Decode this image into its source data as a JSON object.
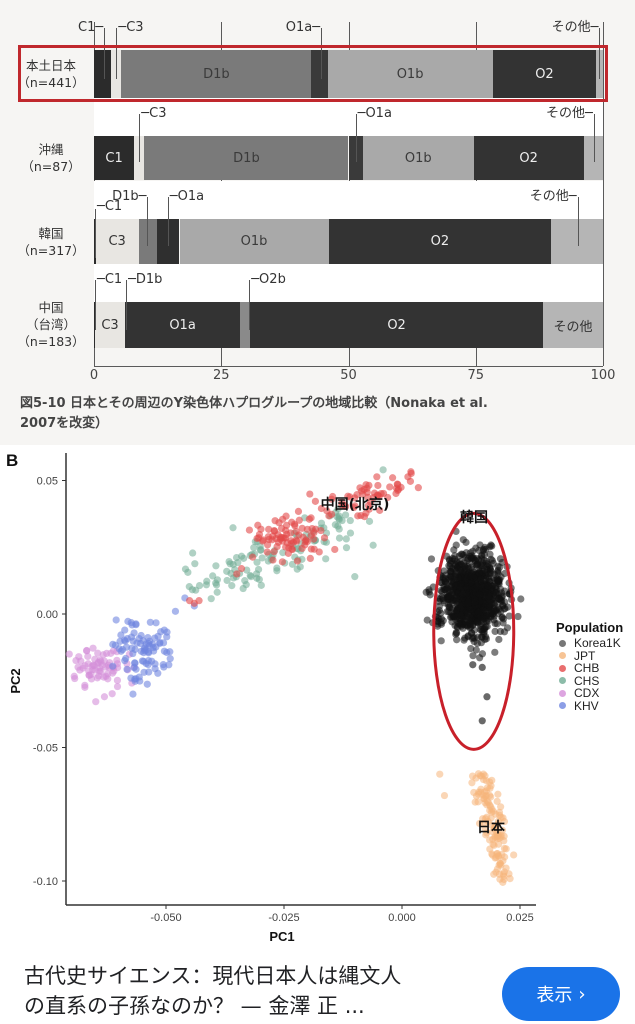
{
  "figure_a": {
    "caption_line1": "図5-10  日本とその周辺のY染色体ハプログループの地域比較（Nonaka et al.",
    "caption_line2": "2007を改変）",
    "axis_ticks": [
      "0",
      "25",
      "50",
      "75",
      "100"
    ],
    "rows": [
      {
        "label_line1": "本土日本",
        "label_line2": "（n=441）",
        "label_line3": "",
        "highlighted": true,
        "segments": [
          {
            "name": "C1",
            "value": 3.4,
            "color": "#2b2b2b",
            "text": "",
            "text_color": "#fff"
          },
          {
            "name": "C3",
            "value": 2.0,
            "color": "#e8e6e2",
            "text": "",
            "text_color": "#333"
          },
          {
            "name": "D1b",
            "value": 37.3,
            "color": "#7a7a7a",
            "text": "D1b",
            "text_color": "#3a3a3a"
          },
          {
            "name": "O1a",
            "value": 3.2,
            "color": "#3a3a3a",
            "text": "",
            "text_color": "#fff"
          },
          {
            "name": "O1b",
            "value": 32.4,
            "color": "#a9a9a9",
            "text": "O1b",
            "text_color": "#3a3a3a"
          },
          {
            "name": "O2",
            "value": 20.4,
            "color": "#333333",
            "text": "O2",
            "text_color": "#eee"
          },
          {
            "name": "その他",
            "value": 1.3,
            "color": "#b5b5b5",
            "text": "",
            "text_color": "#333"
          }
        ],
        "callouts": [
          {
            "text": "C1",
            "x": 2.0,
            "side": "left"
          },
          {
            "text": "C3",
            "x": 4.4,
            "side": "right"
          },
          {
            "text": "O1a",
            "x": 44.6,
            "side": "left"
          },
          {
            "text": "その他",
            "x": 99.3,
            "side": "left"
          }
        ]
      },
      {
        "label_line1": "沖縄",
        "label_line2": "（n=87）",
        "label_line3": "",
        "highlighted": false,
        "segments": [
          {
            "name": "C1",
            "value": 7.9,
            "color": "#2b2b2b",
            "text": "C1",
            "text_color": "#eee"
          },
          {
            "name": "C3",
            "value": 2.0,
            "color": "#e8e6e2",
            "text": "",
            "text_color": "#333"
          },
          {
            "name": "D1b",
            "value": 40.1,
            "color": "#7a7a7a",
            "text": "D1b",
            "text_color": "#3a3a3a"
          },
          {
            "name": "O1a",
            "value": 2.8,
            "color": "#3a3a3a",
            "text": "",
            "text_color": "#fff"
          },
          {
            "name": "O1b",
            "value": 21.8,
            "color": "#a9a9a9",
            "text": "O1b",
            "text_color": "#3a3a3a"
          },
          {
            "name": "O2",
            "value": 21.6,
            "color": "#333333",
            "text": "O2",
            "text_color": "#eee"
          },
          {
            "name": "その他",
            "value": 3.8,
            "color": "#b5b5b5",
            "text": "",
            "text_color": "#333"
          }
        ],
        "callouts": [
          {
            "text": "C3",
            "x": 8.9,
            "side": "right"
          },
          {
            "text": "O1a",
            "x": 51.4,
            "side": "right"
          },
          {
            "text": "その他",
            "x": 98.2,
            "side": "left"
          }
        ]
      },
      {
        "label_line1": "韓国",
        "label_line2": "（n=317）",
        "label_line3": "",
        "highlighted": false,
        "segments": [
          {
            "name": "C1",
            "value": 0.3,
            "color": "#2b2b2b",
            "text": "",
            "text_color": "#fff"
          },
          {
            "name": "C3",
            "value": 8.5,
            "color": "#e8e6e2",
            "text": "C3",
            "text_color": "#333"
          },
          {
            "name": "D1b",
            "value": 3.5,
            "color": "#7a7a7a",
            "text": "",
            "text_color": "#333"
          },
          {
            "name": "O1a",
            "value": 4.5,
            "color": "#2f2f2f",
            "text": "",
            "text_color": "#fff"
          },
          {
            "name": "O1b",
            "value": 29.3,
            "color": "#a9a9a9",
            "text": "O1b",
            "text_color": "#3a3a3a"
          },
          {
            "name": "O2",
            "value": 43.7,
            "color": "#333333",
            "text": "O2",
            "text_color": "#eee"
          },
          {
            "name": "その他",
            "value": 10.2,
            "color": "#b5b5b5",
            "text": "",
            "text_color": "#333"
          }
        ],
        "callouts": [
          {
            "text": "D1b",
            "x": 10.5,
            "side": "left"
          },
          {
            "text": "C1",
            "x": 0.2,
            "side": "right"
          },
          {
            "text": "O1a",
            "x": 14.5,
            "side": "right"
          },
          {
            "text": "その他",
            "x": 95.0,
            "side": "left"
          }
        ]
      },
      {
        "label_line1": "中国",
        "label_line2": "（台湾）",
        "label_line3": "（n=183）",
        "highlighted": false,
        "segments": [
          {
            "name": "C1",
            "value": 0.2,
            "color": "#2b2b2b",
            "text": "",
            "text_color": "#fff"
          },
          {
            "name": "C3",
            "value": 5.9,
            "color": "#e8e6e2",
            "text": "C3",
            "text_color": "#333"
          },
          {
            "name": "O1a",
            "value": 22.6,
            "color": "#333333",
            "text": "O1a",
            "text_color": "#eee"
          },
          {
            "name": "O2b",
            "value": 2.0,
            "color": "#8a8a8a",
            "text": "",
            "text_color": "#333"
          },
          {
            "name": "O2",
            "value": 57.5,
            "color": "#333333",
            "text": "O2",
            "text_color": "#eee"
          },
          {
            "name": "その他",
            "value": 11.8,
            "color": "#b5b5b5",
            "text": "その他",
            "text_color": "#333"
          }
        ],
        "callouts": [
          {
            "text": "C1",
            "x": 0.2,
            "side": "right"
          },
          {
            "text": "D1b",
            "x": 6.3,
            "side": "right"
          },
          {
            "text": "O2b",
            "x": 30.5,
            "side": "right"
          }
        ]
      }
    ]
  },
  "figure_b": {
    "panel_letter": "B",
    "xlabel": "PC1",
    "ylabel": "PC2",
    "x_ticks": [
      "-0.050",
      "-0.025",
      "0.000",
      "0.025"
    ],
    "y_ticks": [
      "0.05",
      "0.00",
      "-0.05",
      "-0.10"
    ],
    "annotations": {
      "china": "中国(北京)",
      "korea": "韓国",
      "japan": "日本"
    },
    "legend": {
      "title": "Population",
      "items": [
        {
          "label": "Korea1K",
          "color": "#555555"
        },
        {
          "label": "JPT",
          "color": "#f5b57a"
        },
        {
          "label": "CHB",
          "color": "#e34a4a"
        },
        {
          "label": "CHS",
          "color": "#6fab94"
        },
        {
          "label": "CDX",
          "color": "#d48fd8"
        },
        {
          "label": "KHV",
          "color": "#6f86e0"
        }
      ]
    },
    "highlight_color": "#c8202a"
  },
  "footer": {
    "title_line1": "古代史サイエンス：現代日本人は縄文人",
    "title_line2": "の直系の子孫なのか？ — 金澤 正 ...",
    "button_label": "表示",
    "button_chevron": "›",
    "button_color": "#1a73e8"
  },
  "chart_data": [
    {
      "type": "bar",
      "orientation": "horizontal-stacked",
      "title": "図5-10 日本とその周辺のY染色体ハプログループの地域比較（Nonaka et al. 2007を改変）",
      "xlabel": "",
      "ylabel": "",
      "xlim": [
        0,
        100
      ],
      "x_ticks": [
        0,
        25,
        50,
        75,
        100
      ],
      "grid": true,
      "categories": [
        "本土日本 (n=441)",
        "沖縄 (n=87)",
        "韓国 (n=317)",
        "中国(台湾) (n=183)"
      ],
      "series": [
        {
          "name": "C1",
          "values": [
            3.4,
            7.9,
            0.3,
            0.2
          ]
        },
        {
          "name": "C3",
          "values": [
            2.0,
            2.0,
            8.5,
            5.9
          ]
        },
        {
          "name": "D1b",
          "values": [
            37.3,
            40.1,
            3.5,
            0.0
          ]
        },
        {
          "name": "O1a",
          "values": [
            3.2,
            2.8,
            4.5,
            22.6
          ]
        },
        {
          "name": "O1b",
          "values": [
            32.4,
            21.8,
            29.3,
            0.0
          ]
        },
        {
          "name": "O2b",
          "values": [
            0.0,
            0.0,
            0.0,
            2.0
          ]
        },
        {
          "name": "O2",
          "values": [
            20.4,
            21.6,
            43.7,
            57.5
          ]
        },
        {
          "name": "その他",
          "values": [
            1.3,
            3.8,
            10.2,
            11.8
          ]
        }
      ],
      "annotations": [
        "本土日本 row highlighted with red box"
      ]
    },
    {
      "type": "scatter",
      "title": "B",
      "xlabel": "PC1",
      "ylabel": "PC2",
      "xlim": [
        -0.071,
        0.027
      ],
      "ylim": [
        -0.105,
        0.058
      ],
      "x_ticks": [
        -0.05,
        -0.025,
        0.0,
        0.025
      ],
      "y_ticks": [
        0.05,
        0.0,
        -0.05,
        -0.1
      ],
      "legend_position": "right",
      "series": [
        {
          "name": "Korea1K",
          "color": "#555555",
          "center": [
            0.015,
            0.007
          ],
          "spread": [
            0.0035,
            0.008
          ],
          "outliers": [
            [
              0.015,
              -0.019
            ],
            [
              0.017,
              -0.02
            ],
            [
              0.018,
              -0.031
            ],
            [
              0.017,
              -0.04
            ]
          ]
        },
        {
          "name": "JPT",
          "color": "#f5b57a",
          "center": [
            0.019,
            -0.08
          ],
          "spread": [
            0.0025,
            0.012
          ],
          "outliers": [
            [
              0.008,
              -0.06
            ],
            [
              0.009,
              -0.068
            ]
          ]
        },
        {
          "name": "CHB",
          "color": "#e34a4a",
          "center": [
            -0.024,
            0.029
          ],
          "spread": [
            0.009,
            0.006
          ],
          "extent_x": [
            -0.047,
            0.0
          ],
          "extent_y": [
            0.004,
            0.052
          ]
        },
        {
          "name": "CHS",
          "color": "#6fab94",
          "center": [
            -0.03,
            0.023
          ],
          "spread": [
            0.008,
            0.006
          ],
          "extent_x": [
            -0.042,
            -0.002
          ],
          "extent_y": [
            0.012,
            0.054
          ]
        },
        {
          "name": "CDX",
          "color": "#d48fd8",
          "center": [
            -0.064,
            -0.021
          ],
          "spread": [
            0.0025,
            0.004
          ]
        },
        {
          "name": "KHV",
          "color": "#6f86e0",
          "center": [
            -0.055,
            -0.014
          ],
          "spread": [
            0.003,
            0.005
          ]
        }
      ],
      "annotations": [
        {
          "text": "中国(北京)",
          "x": -0.016,
          "y": 0.041
        },
        {
          "text": "韓国",
          "x": 0.015,
          "y": 0.036
        },
        {
          "text": "日本",
          "x": 0.019,
          "y": -0.08
        }
      ],
      "highlight": "red ellipse around Korea1K cluster"
    }
  ]
}
